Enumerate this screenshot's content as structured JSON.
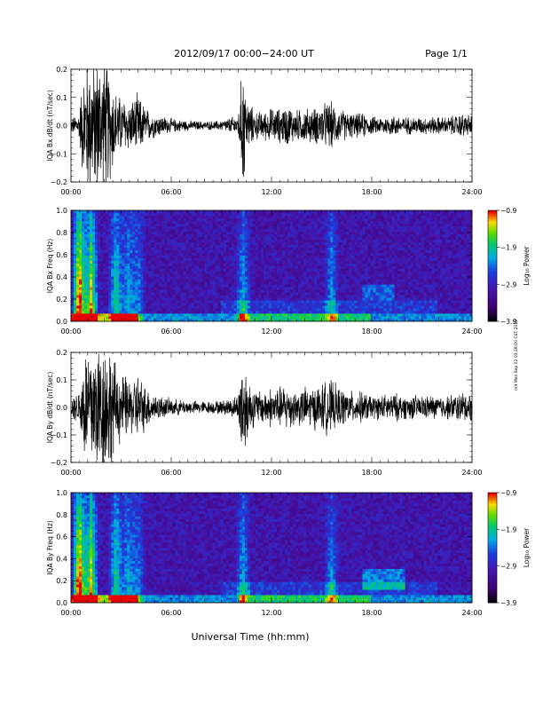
{
  "header": {
    "title": "2012/09/17  00:00−24:00 UT",
    "page": "Page 1/1"
  },
  "side_stamp": "mit Mon Sep 02 03:28:00 CST 2019",
  "chart_data": [
    {
      "type": "line",
      "ylabel": "IQA Bx dB/dt (nT/sec)",
      "ylim": [
        -0.2,
        0.2
      ],
      "yticks": [
        "0.2",
        "0.1",
        "0.0",
        "−0.1",
        "−0.2"
      ],
      "xticks": [
        "00:00",
        "06:00",
        "12:00",
        "18:00",
        "24:00"
      ],
      "xlim_hours": [
        0,
        24
      ],
      "series": [
        {
          "x": [
            0,
            0.5,
            0.7,
            1,
            1.3,
            1.6,
            2,
            2.4,
            2.7,
            3,
            3.3,
            3.6,
            4,
            4.5,
            5,
            6,
            7,
            8,
            9,
            10,
            10.3,
            10.5,
            11,
            11.5,
            12,
            12.5,
            13,
            13.5,
            14,
            14.5,
            15,
            15.5,
            16,
            16.5,
            17,
            17.5,
            18,
            18.5,
            19,
            19.5,
            20,
            20.5,
            21,
            21.5,
            22,
            22.5,
            23,
            23.5,
            24
          ],
          "amplitude": [
            0.02,
            0.04,
            0.15,
            0.2,
            0.2,
            0.2,
            0.2,
            0.15,
            0.1,
            0.08,
            0.08,
            0.07,
            0.09,
            0.05,
            0.035,
            0.02,
            0.015,
            0.012,
            0.015,
            0.03,
            0.2,
            0.08,
            0.04,
            0.04,
            0.05,
            0.05,
            0.06,
            0.045,
            0.05,
            0.05,
            0.06,
            0.07,
            0.05,
            0.04,
            0.035,
            0.035,
            0.025,
            0.025,
            0.03,
            0.03,
            0.025,
            0.025,
            0.025,
            0.025,
            0.025,
            0.025,
            0.03,
            0.035,
            0.03
          ]
        }
      ],
      "color": "#000000"
    },
    {
      "type": "heatmap",
      "ylabel": "IQA Bx Freq (Hz)",
      "ylim": [
        0,
        1
      ],
      "yticks": [
        "1.0",
        "0.8",
        "0.6",
        "0.4",
        "0.2",
        "0.0"
      ],
      "xticks": [
        "00:00",
        "06:00",
        "12:00",
        "18:00",
        "24:00"
      ],
      "colorbar": {
        "label": "Log₁₀ Power",
        "range": [
          -3.9,
          -0.9
        ],
        "ticks": [
          "−0.9",
          "−1.9",
          "−2.9",
          "−3.9"
        ]
      },
      "features": "broadband power near 00:30–03:00 UT; elevated low-frequency power 10–18 UT; band near 0.2–0.3 Hz around 17:30–20:00 UT"
    },
    {
      "type": "line",
      "ylabel": "IQA By dB/dt (nT/sec)",
      "ylim": [
        -0.2,
        0.2
      ],
      "yticks": [
        "0.2",
        "0.1",
        "0.0",
        "−0.1",
        "−0.2"
      ],
      "xticks": [
        "00:00",
        "06:00",
        "12:00",
        "18:00",
        "24:00"
      ],
      "xlim_hours": [
        0,
        24
      ],
      "series": [
        {
          "x": [
            0,
            0.5,
            0.7,
            1,
            1.3,
            1.6,
            2,
            2.4,
            2.7,
            3,
            3.3,
            3.6,
            4,
            4.5,
            5,
            6,
            7,
            8,
            9,
            10,
            10.3,
            10.5,
            11,
            11.5,
            12,
            12.5,
            13,
            13.5,
            14,
            14.5,
            15,
            15.5,
            16,
            16.5,
            17,
            17.5,
            18,
            18.5,
            19,
            19.5,
            20,
            20.5,
            21,
            21.5,
            22,
            22.5,
            23,
            23.5,
            24
          ],
          "amplitude": [
            0.03,
            0.05,
            0.15,
            0.2,
            0.2,
            0.2,
            0.2,
            0.18,
            0.12,
            0.1,
            0.09,
            0.08,
            0.1,
            0.06,
            0.04,
            0.025,
            0.02,
            0.018,
            0.02,
            0.035,
            0.2,
            0.1,
            0.05,
            0.05,
            0.06,
            0.06,
            0.07,
            0.05,
            0.06,
            0.06,
            0.07,
            0.08,
            0.06,
            0.05,
            0.045,
            0.045,
            0.035,
            0.035,
            0.04,
            0.04,
            0.035,
            0.035,
            0.035,
            0.035,
            0.035,
            0.035,
            0.04,
            0.045,
            0.04
          ]
        }
      ],
      "color": "#000000"
    },
    {
      "type": "heatmap",
      "ylabel": "IQA By Freq (Hz)",
      "ylim": [
        0,
        1
      ],
      "yticks": [
        "1.0",
        "0.8",
        "0.6",
        "0.4",
        "0.2",
        "0.0"
      ],
      "xticks": [
        "00:00",
        "06:00",
        "12:00",
        "18:00",
        "24:00"
      ],
      "colorbar": {
        "label": "Log₁₀ Power",
        "range": [
          -3.9,
          -0.9
        ],
        "ticks": [
          "−0.9",
          "−1.9",
          "−2.9",
          "−3.9"
        ]
      },
      "features": "broadband power near 00:30–03:00 UT; elevated low-frequency power 10–18 UT; band near 0.2–0.3 Hz around 17:30–20:00 UT"
    }
  ],
  "xlabel": "Universal Time (hh:mm)"
}
